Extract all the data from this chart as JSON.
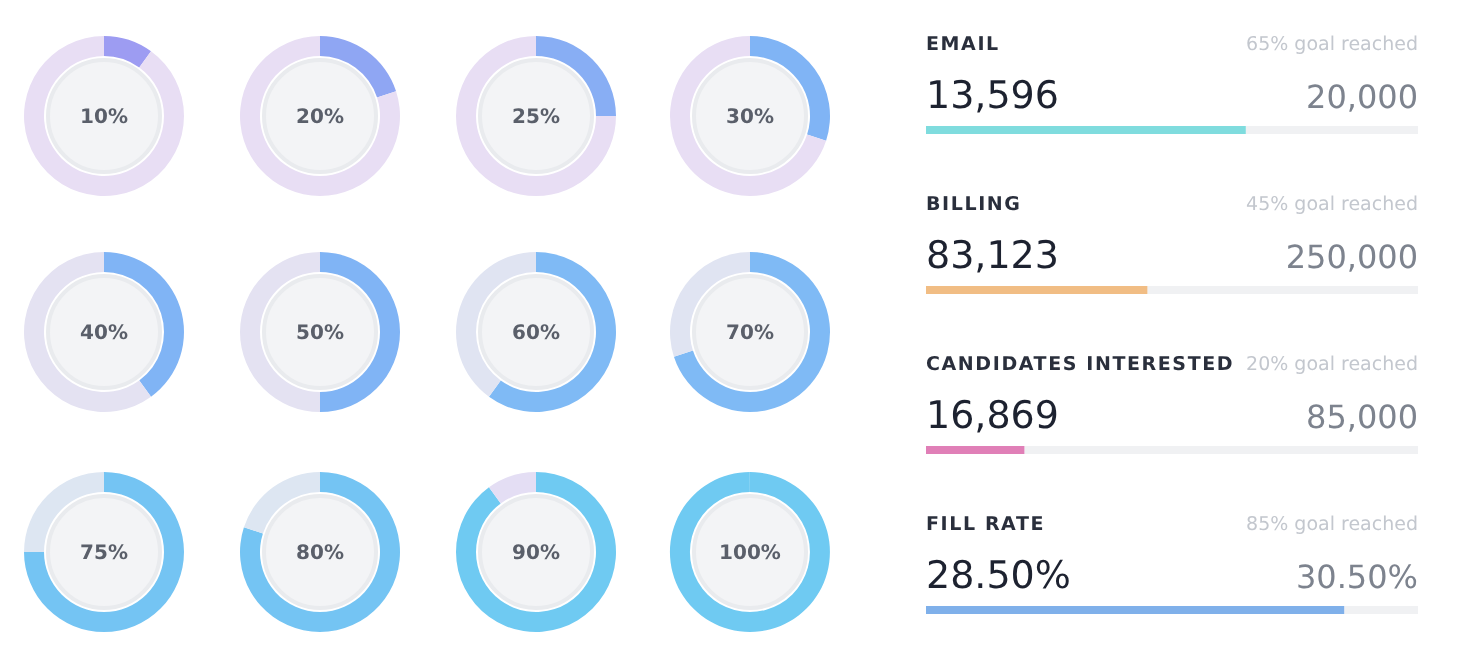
{
  "chart_data": [
    {
      "type": "donut",
      "categories": [
        null,
        null
      ],
      "values": [
        10,
        90
      ],
      "colors": [
        "#9d9cf2",
        "#e8def4"
      ],
      "annotations": [
        "10%"
      ]
    },
    {
      "type": "donut",
      "categories": [
        null,
        null
      ],
      "values": [
        20,
        80
      ],
      "colors": [
        "#8fa6f3",
        "#e8def4"
      ],
      "annotations": [
        "20%"
      ]
    },
    {
      "type": "donut",
      "categories": [
        null,
        null
      ],
      "values": [
        25,
        75
      ],
      "colors": [
        "#88aef4",
        "#e8def4"
      ],
      "annotations": [
        "25%"
      ]
    },
    {
      "type": "donut",
      "categories": [
        null,
        null
      ],
      "values": [
        30,
        70
      ],
      "colors": [
        "#80b4f5",
        "#e8def4"
      ],
      "annotations": [
        "30%"
      ]
    },
    {
      "type": "donut",
      "categories": [
        null,
        null
      ],
      "values": [
        40,
        60
      ],
      "colors": [
        "#80b4f5",
        "#e4e2f2"
      ],
      "annotations": [
        "40%"
      ]
    },
    {
      "type": "donut",
      "categories": [
        null,
        null
      ],
      "values": [
        50,
        50
      ],
      "colors": [
        "#80b4f5",
        "#e4e2f2"
      ],
      "annotations": [
        "50%"
      ]
    },
    {
      "type": "donut",
      "categories": [
        null,
        null
      ],
      "values": [
        60,
        40
      ],
      "colors": [
        "#7fbaf5",
        "#e0e4f2"
      ],
      "annotations": [
        "60%"
      ]
    },
    {
      "type": "donut",
      "categories": [
        null,
        null
      ],
      "values": [
        70,
        30
      ],
      "colors": [
        "#7fbaf5",
        "#e0e4f2"
      ],
      "annotations": [
        "70%"
      ]
    },
    {
      "type": "donut",
      "categories": [
        null,
        null
      ],
      "values": [
        75,
        25
      ],
      "colors": [
        "#74c4f3",
        "#dde6f2"
      ],
      "annotations": [
        "75%"
      ]
    },
    {
      "type": "donut",
      "categories": [
        null,
        null
      ],
      "values": [
        80,
        20
      ],
      "colors": [
        "#74c4f3",
        "#dde6f2"
      ],
      "annotations": [
        "80%"
      ]
    },
    {
      "type": "donut",
      "categories": [
        null,
        null
      ],
      "values": [
        90,
        10
      ],
      "colors": [
        "#6fcaf2",
        "#e4def4"
      ],
      "annotations": [
        "90%"
      ]
    },
    {
      "type": "donut",
      "categories": [
        null
      ],
      "values": [
        100
      ],
      "colors": [
        "#6fcaf2"
      ],
      "annotations": [
        "100%"
      ]
    },
    {
      "type": "bar",
      "orientation": "horizontal",
      "categories": [
        "EMAIL",
        "BILLING",
        "CANDIDATES INTERESTED",
        "FILL RATE"
      ],
      "values": [
        65,
        45,
        20,
        85
      ],
      "value_labels": [
        "65% goal reached",
        "45% goal reached",
        "20% goal reached",
        "85% goal reached"
      ],
      "colors": [
        "#7fdcde",
        "#f1bd84",
        "#e07fb7",
        "#7fb0ea"
      ],
      "xlim": [
        0,
        100
      ],
      "annotations": [
        "13,596",
        "20,000",
        "83,123",
        "250,000",
        "16,869",
        "85,000",
        "28.50%",
        "30.50%"
      ]
    }
  ]
}
